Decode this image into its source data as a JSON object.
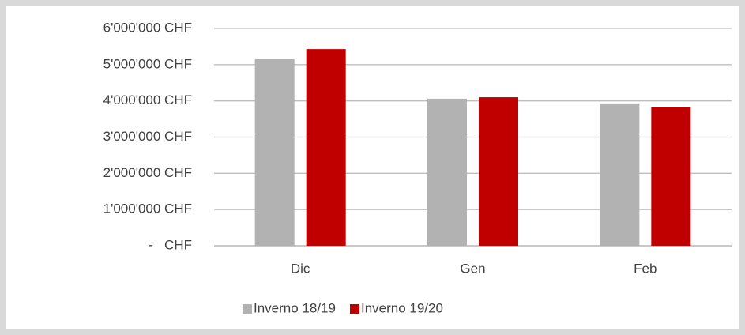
{
  "chart_data": {
    "type": "bar",
    "categories": [
      "Dic",
      "Gen",
      "Feb"
    ],
    "series": [
      {
        "name": "Inverno 18/19",
        "color": "#b2b2b2",
        "values": [
          5150000,
          4060000,
          3930000
        ]
      },
      {
        "name": "Inverno 19/20",
        "color": "#c00000",
        "values": [
          5430000,
          4100000,
          3820000
        ]
      }
    ],
    "ylim": [
      0,
      6000000
    ],
    "yticks": [
      {
        "value": 0,
        "label": "-   CHF"
      },
      {
        "value": 1000000,
        "label": "1'000'000 CHF"
      },
      {
        "value": 2000000,
        "label": "2'000'000 CHF"
      },
      {
        "value": 3000000,
        "label": "3'000'000 CHF"
      },
      {
        "value": 4000000,
        "label": "4'000'000 CHF"
      },
      {
        "value": 5000000,
        "label": "5'000'000 CHF"
      },
      {
        "value": 6000000,
        "label": "6'000'000 CHF"
      }
    ],
    "grid": true,
    "legend": "bottom"
  }
}
